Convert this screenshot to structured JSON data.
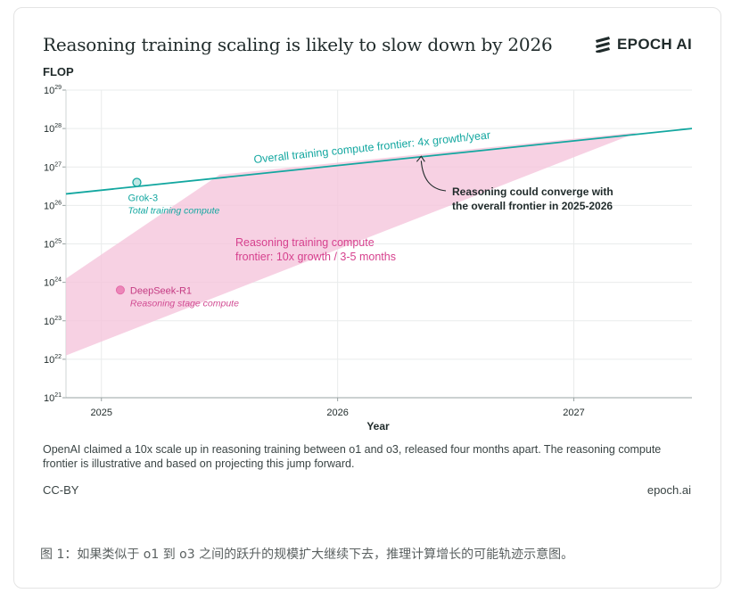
{
  "header": {
    "title": "Reasoning training scaling is likely to slow down by 2026",
    "logo_text": "EPOCH AI"
  },
  "chart_data": {
    "type": "line",
    "title": "Reasoning training scaling is likely to slow down by 2026",
    "ylabel": "FLOP",
    "xlabel": "Year",
    "yscale": "log",
    "ylim_exponent": [
      21,
      29
    ],
    "xlim": [
      2024.85,
      2027.5
    ],
    "x_ticks": [
      2025,
      2026,
      2027
    ],
    "x_tick_labels": [
      "2025",
      "2026",
      "2027"
    ],
    "y_tick_exponents": [
      29,
      28,
      27,
      26,
      25,
      24,
      23,
      22,
      21
    ],
    "series": [
      {
        "name": "Overall training compute frontier",
        "label": "Overall training compute frontier: 4x growth/year",
        "color": "#13a7a0",
        "x": [
          2024.85,
          2027.5
        ],
        "log10_y": [
          26.3,
          28.0
        ]
      }
    ],
    "band": {
      "name": "Reasoning training compute frontier",
      "label_lines": [
        "Reasoning training compute",
        "frontier: 10x growth / 3-5 months"
      ],
      "color": "#f5c6dc",
      "polygon_x": [
        2024.85,
        2025.5,
        2027.27,
        2024.85
      ],
      "polygon_log10_y": [
        24.1,
        26.8,
        27.9,
        22.1
      ]
    },
    "points": [
      {
        "name": "Grok-3",
        "note": "Total training compute",
        "x": 2025.15,
        "log10_y": 26.6,
        "color": "#13a7a0"
      },
      {
        "name": "DeepSeek-R1",
        "note": "Reasoning stage compute",
        "x": 2025.08,
        "log10_y": 23.8,
        "color": "#e46aa8"
      }
    ],
    "annotation": {
      "lines": [
        "Reasoning could converge with",
        "the overall frontier in 2025-2026"
      ],
      "arrow_target": {
        "x": 2026.35,
        "log10_y": 27.3
      }
    }
  },
  "caption": "OpenAI claimed a 10x scale up in reasoning training between o1 and o3, released four months apart. The reasoning compute frontier is illustrative and based on projecting this jump forward.",
  "footer": {
    "license": "CC-BY",
    "site": "epoch.ai"
  },
  "figure_caption": "图 1：如果类似于 o1 到 o3 之间的跃升的规模扩大继续下去，推理计算增长的可能轨迹示意图。"
}
